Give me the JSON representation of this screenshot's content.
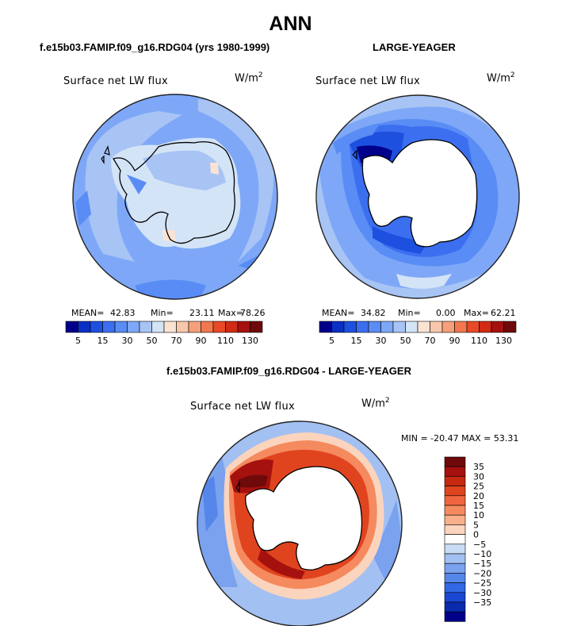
{
  "title": "ANN",
  "panels": [
    {
      "case_label": "f.e15b03.FAMIP.f09_g16.RDG04 (yrs 1980-1999)",
      "variable": "Surface net LW flux",
      "units_base": "W/m",
      "units_exp": "2",
      "mean_label": "MEAN=",
      "mean_value": "42.83",
      "min_label": "Min=",
      "min_value": "23.11",
      "max_label": "Max=",
      "max_value": "78.26"
    },
    {
      "case_label": "LARGE-YEAGER",
      "variable": "Surface net LW flux",
      "units_base": "W/m",
      "units_exp": "2",
      "mean_label": "MEAN=",
      "mean_value": "34.82",
      "min_label": "Min=",
      "min_value": "0.00",
      "max_label": "Max=",
      "max_value": "62.21"
    }
  ],
  "diff_panel": {
    "case_label": "f.e15b03.FAMIP.f09_g16.RDG04 - LARGE-YEAGER",
    "variable": "Surface net LW flux",
    "units_base": "W/m",
    "units_exp": "2",
    "minmax": "MIN = -20.47 MAX =  53.31"
  },
  "abs_colorbar": {
    "colors": [
      "#00008b",
      "#0a2fc4",
      "#1e50e0",
      "#3c6ff0",
      "#5a8cf5",
      "#7ea8f7",
      "#a7c4f5",
      "#d4e4f7",
      "#fbe3d4",
      "#f8c6ab",
      "#f5a07a",
      "#f2774e",
      "#e84a27",
      "#d02b14",
      "#a5110e",
      "#6e0a0a"
    ],
    "tick_labels": [
      "5",
      "15",
      "30",
      "50",
      "70",
      "90",
      "110",
      "130"
    ]
  },
  "diff_colorbar": {
    "colors": [
      "#6e0a0a",
      "#a5110e",
      "#c62810",
      "#e0441f",
      "#f0653d",
      "#f58a5f",
      "#f9b08a",
      "#fbd4bd",
      "#ffffff",
      "#c9dcf5",
      "#a3c0f2",
      "#7aa2ee",
      "#5586ea",
      "#3168e6",
      "#1a46d4",
      "#0a2aae",
      "#00008b"
    ],
    "tick_labels": [
      "35",
      "30",
      "25",
      "20",
      "15",
      "10",
      "5",
      "0",
      "−5",
      "−10",
      "−15",
      "−20",
      "−25",
      "−30",
      "−35"
    ]
  }
}
